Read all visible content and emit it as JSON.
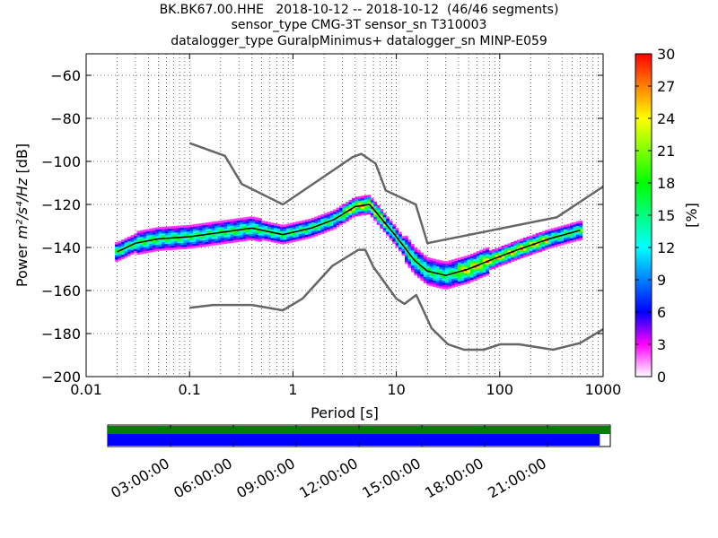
{
  "title_lines": [
    "BK.BK67.00.HHE   2018-10-12 -- 2018-10-12  (46/46 segments)",
    "sensor_type CMG-3T sensor_sn T310003",
    "datalogger_type GuralpMinimus+ datalogger_sn MINP-E059"
  ],
  "chart_data": {
    "type": "heatmap",
    "xlabel": "Period [s]",
    "ylabel_prefix": "Power ",
    "ylabel_units": "m²/s⁴/Hz",
    "ylabel_suffix": " [dB]",
    "xscale": "log",
    "xlim": [
      0.01,
      1000
    ],
    "ylim": [
      -200,
      -50
    ],
    "xticks": [
      0.01,
      0.1,
      1,
      10,
      100,
      1000
    ],
    "xtick_labels": [
      "0.01",
      "0.1",
      "1",
      "10",
      "100",
      "1000"
    ],
    "yticks": [
      -200,
      -180,
      -160,
      -140,
      -120,
      -100,
      -80,
      -60
    ],
    "ytick_labels": [
      "−200",
      "−180",
      "−160",
      "−140",
      "−120",
      "−100",
      "−80",
      "−60"
    ],
    "grid": "dotted, minor and major on period axis",
    "colorbar": {
      "label": "[%]",
      "range": [
        0,
        30
      ],
      "ticks": [
        0,
        3,
        6,
        9,
        12,
        15,
        18,
        21,
        24,
        27,
        30
      ],
      "colors": [
        "#ffffff",
        "#ff00ff",
        "#0000ff",
        "#00ffff",
        "#00ff00",
        "#ffff00",
        "#ff8000",
        "#ff0000"
      ]
    },
    "mean_curve": [
      [
        0.02,
        -142
      ],
      [
        0.03,
        -138
      ],
      [
        0.05,
        -136
      ],
      [
        0.1,
        -135
      ],
      [
        0.2,
        -133
      ],
      [
        0.4,
        -131
      ],
      [
        0.8,
        -134
      ],
      [
        1.5,
        -131
      ],
      [
        2.5,
        -127
      ],
      [
        4,
        -121
      ],
      [
        5.5,
        -120
      ],
      [
        7,
        -126
      ],
      [
        10,
        -135
      ],
      [
        15,
        -146
      ],
      [
        20,
        -151
      ],
      [
        30,
        -153
      ],
      [
        50,
        -150
      ],
      [
        80,
        -146
      ],
      [
        150,
        -141
      ],
      [
        300,
        -136
      ],
      [
        600,
        -132
      ]
    ],
    "nhnm": [
      [
        0.1,
        -91.5
      ],
      [
        0.22,
        -97.4
      ],
      [
        0.32,
        -110.5
      ],
      [
        0.8,
        -120
      ],
      [
        3.8,
        -97.9
      ],
      [
        4.6,
        -96.5
      ],
      [
        6.3,
        -101
      ],
      [
        7.9,
        -113.5
      ],
      [
        15.4,
        -120
      ],
      [
        20,
        -138
      ],
      [
        354.8,
        -126
      ],
      [
        10000,
        -80
      ]
    ],
    "nlnm": [
      [
        0.1,
        -168
      ],
      [
        0.17,
        -166.7
      ],
      [
        0.4,
        -166.7
      ],
      [
        0.8,
        -169.2
      ],
      [
        1.24,
        -163.7
      ],
      [
        2.4,
        -148.6
      ],
      [
        4.3,
        -141.1
      ],
      [
        5,
        -141.1
      ],
      [
        6,
        -149
      ],
      [
        10,
        -163.8
      ],
      [
        12,
        -166.2
      ],
      [
        15.6,
        -162.1
      ],
      [
        21.9,
        -177.5
      ],
      [
        31.6,
        -185
      ],
      [
        45,
        -187.5
      ],
      [
        70,
        -187.5
      ],
      [
        101,
        -185
      ],
      [
        154,
        -185
      ],
      [
        328,
        -187.5
      ],
      [
        600,
        -184.4
      ],
      [
        1000,
        -178
      ],
      [
        10000,
        -168
      ]
    ],
    "timeline": {
      "tick_labels": [
        "03:00:00",
        "06:00:00",
        "09:00:00",
        "12:00:00",
        "15:00:00",
        "18:00:00",
        "21:00:00"
      ],
      "tick_hours": [
        3,
        6,
        9,
        12,
        15,
        18,
        21
      ],
      "green_coverage": [
        0,
        24
      ],
      "blue_coverage": [
        0,
        23.5
      ]
    }
  }
}
